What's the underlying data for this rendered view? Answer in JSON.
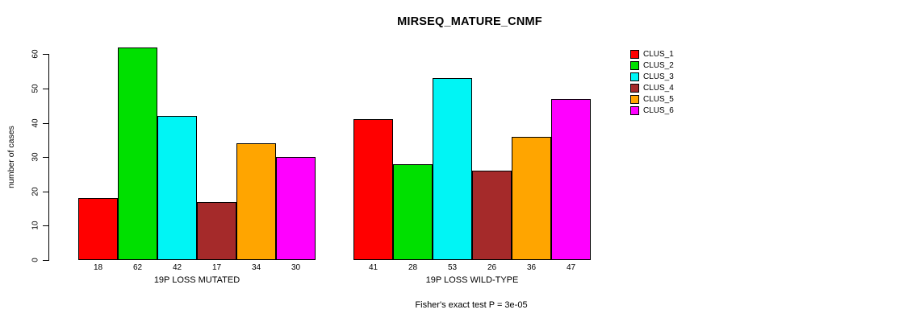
{
  "title": "MIRSEQ_MATURE_CNMF",
  "ylabel": "number of cases",
  "annotation": "Fisher's exact test P = 3e-05",
  "chart_data": {
    "type": "bar",
    "title": "MIRSEQ_MATURE_CNMF",
    "ylabel": "number of cases",
    "xlabel": "",
    "categories": [
      "19P LOSS MUTATED",
      "19P LOSS WILD-TYPE"
    ],
    "series": [
      {
        "name": "CLUS_1",
        "color": "#FF0000",
        "values": [
          18,
          41
        ]
      },
      {
        "name": "CLUS_2",
        "color": "#00E000",
        "values": [
          62,
          28
        ]
      },
      {
        "name": "CLUS_3",
        "color": "#00F5F5",
        "values": [
          42,
          53
        ]
      },
      {
        "name": "CLUS_4",
        "color": "#A52A2A",
        "values": [
          17,
          26
        ]
      },
      {
        "name": "CLUS_5",
        "color": "#FFA500",
        "values": [
          34,
          36
        ]
      },
      {
        "name": "CLUS_6",
        "color": "#FF00FF",
        "values": [
          30,
          47
        ]
      }
    ],
    "yticks": [
      0,
      10,
      20,
      30,
      40,
      50,
      60
    ],
    "ylim": [
      0,
      62
    ],
    "bar_value_labels_shown": true,
    "grid": false,
    "legend_position": "right",
    "annotation": "Fisher's exact test P = 3e-05"
  }
}
